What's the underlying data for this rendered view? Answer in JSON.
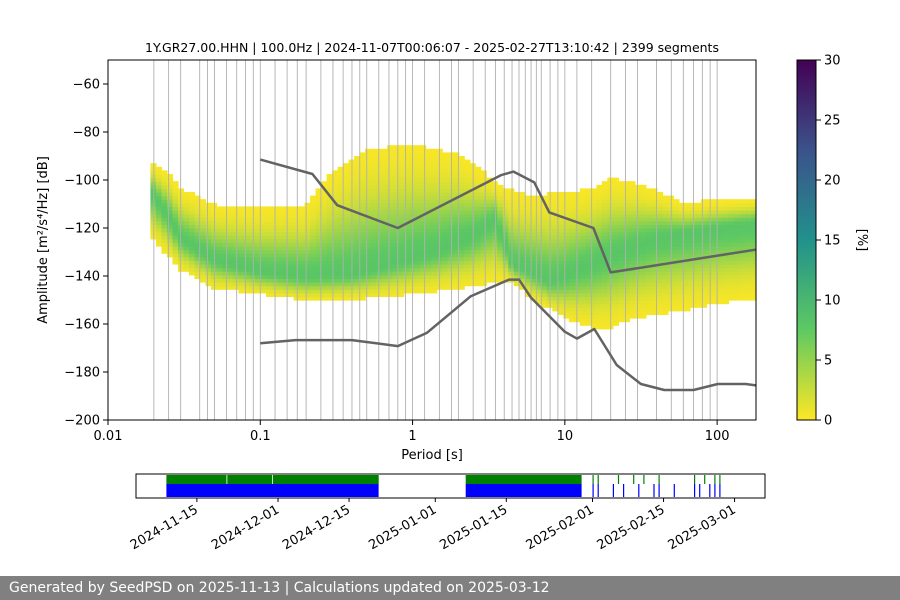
{
  "chart_data": [
    {
      "type": "heatmap",
      "title": "1Y.GR27.00.HHN | 100.0Hz | 2024-11-07T00:06:07 - 2025-02-27T13:10:42 | 2399 segments",
      "xlabel": "Period [s]",
      "ylabel": "Amplitude [m²/s⁴/Hz] [dB]",
      "x_scale": "log",
      "xlim": [
        0.01,
        180
      ],
      "ylim": [
        -200,
        -50
      ],
      "x_ticks": [
        {
          "value": 0.01,
          "label": "0.01"
        },
        {
          "value": 0.1,
          "label": "0.1"
        },
        {
          "value": 1,
          "label": "1"
        },
        {
          "value": 10,
          "label": "10"
        },
        {
          "value": 100,
          "label": "100"
        }
      ],
      "y_ticks": [
        {
          "value": -60,
          "label": "−60"
        },
        {
          "value": -80,
          "label": "−80"
        },
        {
          "value": -100,
          "label": "−100"
        },
        {
          "value": -120,
          "label": "−120"
        },
        {
          "value": -140,
          "label": "−140"
        },
        {
          "value": -160,
          "label": "−160"
        },
        {
          "value": -180,
          "label": "−180"
        },
        {
          "value": -200,
          "label": "−200"
        }
      ],
      "grid": "vertical at each period bin",
      "grid_periods": [
        0.02,
        0.025,
        0.03,
        0.04,
        0.045,
        0.05,
        0.06,
        0.07,
        0.08,
        0.09,
        0.1,
        0.125,
        0.15,
        0.175,
        0.2,
        0.25,
        0.3,
        0.35,
        0.4,
        0.45,
        0.5,
        0.6,
        0.7,
        0.8,
        0.9,
        1,
        1.2,
        1.5,
        1.8,
        2,
        2.5,
        3,
        3.5,
        4,
        4.5,
        5,
        5.5,
        6,
        6.5,
        7,
        8,
        9,
        10,
        12,
        15,
        20,
        25,
        30,
        40,
        50,
        60,
        70,
        80,
        90,
        100
      ],
      "colorbar": {
        "label": "[%]",
        "range": [
          0,
          30
        ],
        "ticks": [
          "0",
          "5",
          "10",
          "15",
          "20",
          "25",
          "30"
        ],
        "colormap": "viridis_r"
      },
      "density": {
        "period_range": [
          0.019,
          180
        ],
        "lower_bound": [
          [
            0.019,
            -124
          ],
          [
            0.025,
            -133
          ],
          [
            0.03,
            -138
          ],
          [
            0.05,
            -146
          ],
          [
            0.1,
            -148
          ],
          [
            0.2,
            -151
          ],
          [
            0.5,
            -150
          ],
          [
            1,
            -148
          ],
          [
            2,
            -146
          ],
          [
            3,
            -144
          ],
          [
            4.5,
            -143
          ],
          [
            6,
            -150
          ],
          [
            10,
            -158
          ],
          [
            15,
            -162
          ],
          [
            20,
            -162
          ],
          [
            30,
            -158
          ],
          [
            60,
            -155
          ],
          [
            100,
            -152
          ],
          [
            180,
            -150
          ]
        ],
        "upper_bound": [
          [
            0.019,
            -93
          ],
          [
            0.025,
            -98
          ],
          [
            0.03,
            -104
          ],
          [
            0.05,
            -111
          ],
          [
            0.1,
            -112
          ],
          [
            0.2,
            -111
          ],
          [
            0.3,
            -97
          ],
          [
            0.5,
            -88
          ],
          [
            1,
            -86
          ],
          [
            2,
            -90
          ],
          [
            3,
            -98
          ],
          [
            4,
            -104
          ],
          [
            6,
            -107
          ],
          [
            10,
            -106
          ],
          [
            15,
            -104
          ],
          [
            20,
            -100
          ],
          [
            30,
            -102
          ],
          [
            60,
            -110
          ],
          [
            100,
            -109
          ],
          [
            180,
            -108
          ]
        ],
        "mode_curve": [
          [
            0.019,
            -104
          ],
          [
            0.025,
            -115
          ],
          [
            0.03,
            -124
          ],
          [
            0.05,
            -133
          ],
          [
            0.1,
            -138
          ],
          [
            0.2,
            -140
          ],
          [
            0.4,
            -139
          ],
          [
            0.8,
            -134
          ],
          [
            1.5,
            -129
          ],
          [
            2.5,
            -123
          ],
          [
            3.5,
            -116
          ],
          [
            4.5,
            -135
          ],
          [
            5.5,
            -137
          ],
          [
            8,
            -142
          ],
          [
            10,
            -140
          ],
          [
            20,
            -131
          ],
          [
            40,
            -124
          ],
          [
            100,
            -120
          ],
          [
            180,
            -118
          ]
        ],
        "peak_percent": 8
      },
      "series": [
        {
          "role": "high-noise-model",
          "color": "#636363",
          "points": [
            [
              0.1,
              -91.5
            ],
            [
              0.22,
              -97.5
            ],
            [
              0.32,
              -110.5
            ],
            [
              0.8,
              -120
            ],
            [
              3.8,
              -98
            ],
            [
              4.6,
              -96.5
            ],
            [
              6.3,
              -101
            ],
            [
              7.9,
              -113.5
            ],
            [
              15.4,
              -120
            ],
            [
              20,
              -138.5
            ],
            [
              180,
              -129
            ]
          ]
        },
        {
          "role": "low-noise-model",
          "color": "#636363",
          "points": [
            [
              0.1,
              -168
            ],
            [
              0.17,
              -166.7
            ],
            [
              0.4,
              -166.7
            ],
            [
              0.8,
              -169.2
            ],
            [
              1.24,
              -163.7
            ],
            [
              2.4,
              -148.5
            ],
            [
              4.3,
              -141.5
            ],
            [
              5,
              -141.5
            ],
            [
              6,
              -149.1
            ],
            [
              10,
              -163.2
            ],
            [
              12,
              -166.1
            ],
            [
              15.6,
              -162.1
            ],
            [
              21.9,
              -177.1
            ],
            [
              31.6,
              -185
            ],
            [
              45,
              -187.5
            ],
            [
              70,
              -187.5
            ],
            [
              101,
              -185
            ],
            [
              154,
              -185
            ],
            [
              180,
              -185.6
            ]
          ]
        }
      ]
    },
    {
      "type": "timeline",
      "x_range": [
        "2024-11-03",
        "2025-03-07"
      ],
      "x_ticks": [
        {
          "value": "2024-11-15",
          "label": "2024-11-15"
        },
        {
          "value": "2024-12-01",
          "label": "2024-12-01"
        },
        {
          "value": "2024-12-15",
          "label": "2024-12-15"
        },
        {
          "value": "2025-01-01",
          "label": "2025-01-01"
        },
        {
          "value": "2025-01-15",
          "label": "2025-01-15"
        },
        {
          "value": "2025-02-01",
          "label": "2025-02-01"
        },
        {
          "value": "2025-02-15",
          "label": "2025-02-15"
        },
        {
          "value": "2025-03-01",
          "label": "2025-03-01"
        }
      ],
      "coverage_top": {
        "color": "#008000",
        "intervals": [
          [
            "2024-11-09",
            "2024-11-21"
          ],
          [
            "2024-11-21",
            "2024-11-30"
          ],
          [
            "2024-11-30",
            "2024-12-21"
          ],
          [
            "2025-01-07",
            "2025-01-30"
          ]
        ],
        "ticks": [
          "2025-02-01",
          "2025-02-02",
          "2025-02-06",
          "2025-02-09",
          "2025-02-11",
          "2025-02-14",
          "2025-02-21",
          "2025-02-23",
          "2025-02-25",
          "2025-02-26"
        ]
      },
      "coverage_bottom": {
        "color": "#0000ff",
        "intervals": [
          [
            "2024-11-09",
            "2024-12-21"
          ],
          [
            "2025-01-07",
            "2025-01-30"
          ]
        ],
        "ticks": [
          "2025-02-01",
          "2025-02-02",
          "2025-02-05",
          "2025-02-07",
          "2025-02-10",
          "2025-02-13",
          "2025-02-14",
          "2025-02-17",
          "2025-02-21",
          "2025-02-22",
          "2025-02-24",
          "2025-02-25",
          "2025-02-26"
        ]
      }
    }
  ],
  "footer": {
    "text": "Generated by SeedPSD on 2025-11-13 | Calculations updated on 2025-03-12"
  }
}
